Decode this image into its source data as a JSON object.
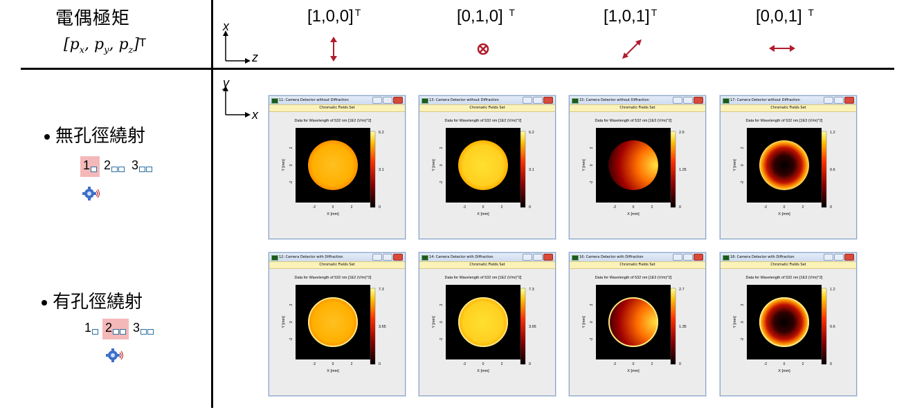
{
  "header": {
    "title": "電偶極矩",
    "subtitle_math": "[p",
    "subtitle_sup": "T",
    "subtitle_parts": [
      "x",
      "y",
      "z"
    ]
  },
  "columns": [
    {
      "label": "[1,0,0]",
      "sup": "T",
      "icon": "vertical-double-arrow-icon"
    },
    {
      "label": "[0,1,0] ",
      "sup": "T",
      "icon": "circle-cross-icon"
    },
    {
      "label": "[1,0,1]",
      "sup": "T",
      "icon": "diagonal-double-arrow-icon"
    },
    {
      "label": "[0,0,1] ",
      "sup": "T",
      "icon": "horizontal-double-arrow-icon"
    }
  ],
  "axes_top": {
    "vertical": "x",
    "horizontal": "z"
  },
  "axes_side": {
    "vertical": "y",
    "horizontal": "x"
  },
  "accent_color": "#b01c2c",
  "rows": [
    {
      "label": "無孔徑繞射",
      "tabs": [
        "1",
        "2",
        "3"
      ],
      "active_tab": 0
    },
    {
      "label": "有孔徑繞射",
      "tabs": [
        "1",
        "2",
        "3"
      ],
      "active_tab": 1
    }
  ],
  "windows": [
    {
      "title": "11: Camera Detector without Diffraction",
      "subtitle": "Chromatic Fields Set",
      "plot_title": "Data for Wavelength of 532 nm  [1E2 (V/m)^2]",
      "cb_max": "6.2",
      "cb_mid": "3.1",
      "cb_min": "0",
      "pattern": "uniform"
    },
    {
      "title": "13: Camera Detector without Diffraction",
      "subtitle": "Chromatic Fields Set",
      "plot_title": "Data for Wavelength of 532 nm  [1E2 (V/m)^2]",
      "cb_max": "6.2",
      "cb_mid": "3.1",
      "cb_min": "0",
      "pattern": "uniform-bright"
    },
    {
      "title": "15: Camera Detector without Diffraction",
      "subtitle": "Chromatic Fields Set",
      "plot_title": "Data for Wavelength of 532 nm  [1E3 (V/m)^2]",
      "cb_max": "2.5",
      "cb_mid": "1.25",
      "cb_min": "0",
      "pattern": "gradient"
    },
    {
      "title": "17: Camera Detector without Diffraction",
      "subtitle": "Chromatic Fields Set",
      "plot_title": "Data for Wavelength of 532 nm  [1E3 (V/m)^2]",
      "cb_max": "1.2",
      "cb_mid": "0.6",
      "cb_min": "0",
      "pattern": "ring"
    },
    {
      "title": "12: Camera Detector with Diffraction",
      "subtitle": "Chromatic Fields Set",
      "plot_title": "Data for Wavelength of 532 nm  [1E2 (V/m)^2]",
      "cb_max": "7.3",
      "cb_mid": "3.65",
      "cb_min": "0",
      "pattern": "uniform-edge"
    },
    {
      "title": "14: Camera Detector with Diffraction",
      "subtitle": "Chromatic Fields Set",
      "plot_title": "Data for Wavelength of 532 nm  [1E2 (V/m)^2]",
      "cb_max": "7.3",
      "cb_mid": "3.65",
      "cb_min": "0",
      "pattern": "uniform-edge-bright"
    },
    {
      "title": "16: Camera Detector with Diffraction",
      "subtitle": "Chromatic Fields Set",
      "plot_title": "Data for Wavelength of 532 nm  [1E3 (V/m)^2]",
      "cb_max": "2.7",
      "cb_mid": "1.35",
      "cb_min": "0",
      "pattern": "gradient-edge"
    },
    {
      "title": "18: Camera Detector with Diffraction",
      "subtitle": "Chromatic Fields Set",
      "plot_title": "Data for Wavelength of 532 nm  [1E3 (V/m)^2]",
      "cb_max": "1.2",
      "cb_mid": "0.6",
      "cb_min": "0",
      "pattern": "ring-edge"
    }
  ],
  "plot_axes": {
    "xlabel": "X [mm]",
    "ylabel": "Y [mm]",
    "xticks": [
      "-2",
      "0",
      "2"
    ],
    "yticks": [
      "2",
      "0",
      "-2"
    ]
  }
}
